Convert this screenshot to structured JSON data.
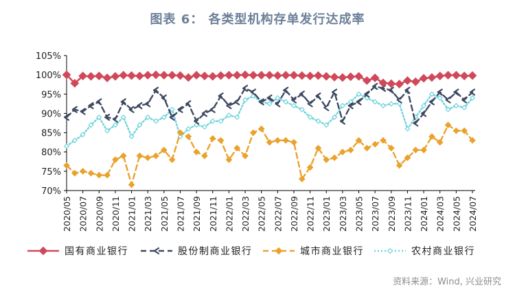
{
  "chart_data": {
    "type": "line",
    "title": "图表 6： 各类型机构存单发行达成率",
    "source": "资料来源：Wind, 兴业研究",
    "ylim": [
      70,
      105
    ],
    "yticks": [
      "70%",
      "75%",
      "80%",
      "85%",
      "90%",
      "95%",
      "100%",
      "105%"
    ],
    "ytick_values": [
      70,
      75,
      80,
      85,
      90,
      95,
      100,
      105
    ],
    "x_tick_labels": [
      "2020/05",
      "2020/07",
      "2020/09",
      "2020/11",
      "2021/01",
      "2021/03",
      "2021/05",
      "2021/07",
      "2021/09",
      "2021/11",
      "2022/01",
      "2022/03",
      "2022/05",
      "2022/07",
      "2022/09",
      "2022/11",
      "2023/01",
      "2023/03",
      "2023/05",
      "2023/07",
      "2023/09",
      "2023/11",
      "2024/01",
      "2024/03",
      "2024/05",
      "2024/07"
    ],
    "n_points": 51,
    "series": [
      {
        "name": "国有商业银行",
        "color": "#d0495a",
        "style": "solid-diamond",
        "values": [
          100,
          97.8,
          99.7,
          99.6,
          99.7,
          99.2,
          99.6,
          99.9,
          99.8,
          99.7,
          99.9,
          100,
          99.9,
          99.9,
          99.8,
          99.3,
          99.9,
          99.7,
          99.6,
          99.8,
          99.9,
          99.9,
          100,
          99.9,
          99.9,
          99.9,
          99.8,
          99.9,
          99.9,
          99.8,
          99.7,
          99.8,
          99.6,
          99.4,
          99.3,
          99.5,
          99.6,
          98.5,
          99.2,
          97.9,
          97.7,
          97.6,
          98.5,
          98.2,
          99.1,
          99.3,
          99.7,
          99.9,
          99.9,
          99.7,
          99.8
        ]
      },
      {
        "name": "股份制商业银行",
        "color": "#3e4a62",
        "style": "dash-arrow",
        "values": [
          89,
          91,
          90.5,
          92,
          93,
          89,
          88.5,
          93,
          91,
          92,
          92.5,
          96,
          94,
          89,
          91,
          92.5,
          88,
          90,
          91,
          94.5,
          92,
          93,
          96.5,
          95.5,
          93,
          94,
          92.5,
          96,
          93.5,
          95,
          92.5,
          94.5,
          91.5,
          95.5,
          88,
          92,
          93,
          95,
          97,
          96.5,
          96,
          93.5,
          96,
          87.5,
          90,
          93,
          95.5,
          93.5,
          95.5,
          93.5,
          95.5
        ]
      },
      {
        "name": "城市商业银行",
        "color": "#eaa22c",
        "style": "dash-diamond",
        "values": [
          76.5,
          74.5,
          75,
          74.5,
          74,
          74,
          78,
          79,
          71.5,
          79,
          78.5,
          79,
          80.5,
          78,
          85,
          84,
          80,
          79,
          83.5,
          83,
          78,
          81,
          79,
          85,
          86,
          82.5,
          83,
          83,
          82.5,
          73,
          76,
          81,
          78,
          78.5,
          80,
          80.5,
          83,
          81,
          82,
          83,
          81,
          76.5,
          78.5,
          80.5,
          80.5,
          84,
          82.5,
          87,
          85.5,
          85.5,
          83
        ]
      },
      {
        "name": "农村商业银行",
        "color": "#6fd3dc",
        "style": "dotted-diamond",
        "values": [
          81.5,
          83,
          84.5,
          87,
          89,
          85.5,
          87,
          89,
          84,
          87,
          89,
          88,
          89,
          91,
          84,
          86,
          87,
          86.5,
          88,
          88,
          89.5,
          89,
          93.5,
          94.5,
          93,
          92.5,
          94,
          93,
          92,
          91,
          89,
          88,
          87,
          89,
          92,
          93,
          95,
          94,
          93,
          92,
          92.5,
          92.5,
          86,
          89,
          92,
          95,
          94,
          91,
          92,
          91.5,
          94
        ]
      }
    ]
  }
}
